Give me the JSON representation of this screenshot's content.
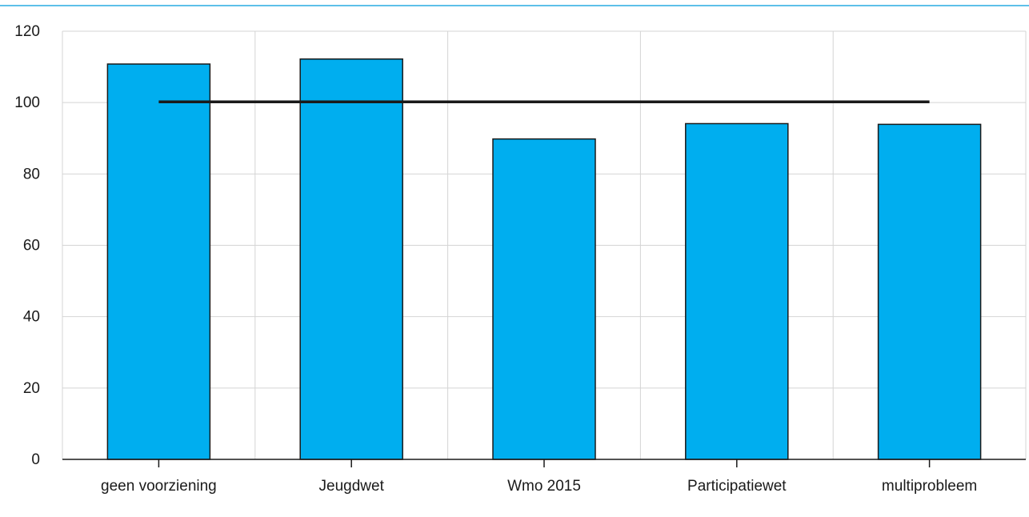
{
  "chart_data": {
    "type": "bar",
    "title": "",
    "xlabel": "",
    "ylabel": "",
    "categories": [
      "geen voorziening",
      "Jeugdwet",
      "Wmo 2015",
      "Participatiewet",
      "multiprobleem"
    ],
    "series": [
      {
        "values": [
          110.8,
          112.2,
          89.8,
          94.1,
          93.9
        ]
      }
    ],
    "reference_line": {
      "value": 100.2,
      "from_category": "geen voorziening",
      "to_category": "multiprobleem"
    },
    "ylim": [
      0,
      120
    ],
    "yticks": [
      0,
      20,
      40,
      60,
      80,
      100,
      120
    ],
    "ytick_labels": [
      "0",
      "20",
      "40",
      "60",
      "80",
      "100",
      "120"
    ],
    "grid": true,
    "colors": {
      "bar_fill": "#00aeef",
      "bar_stroke": "#1a1a1a",
      "reference_line": "#1a1a1a",
      "grid": "#d4d4d4",
      "axis": "#1a1a1a",
      "top_rule": "#29abe2"
    }
  }
}
